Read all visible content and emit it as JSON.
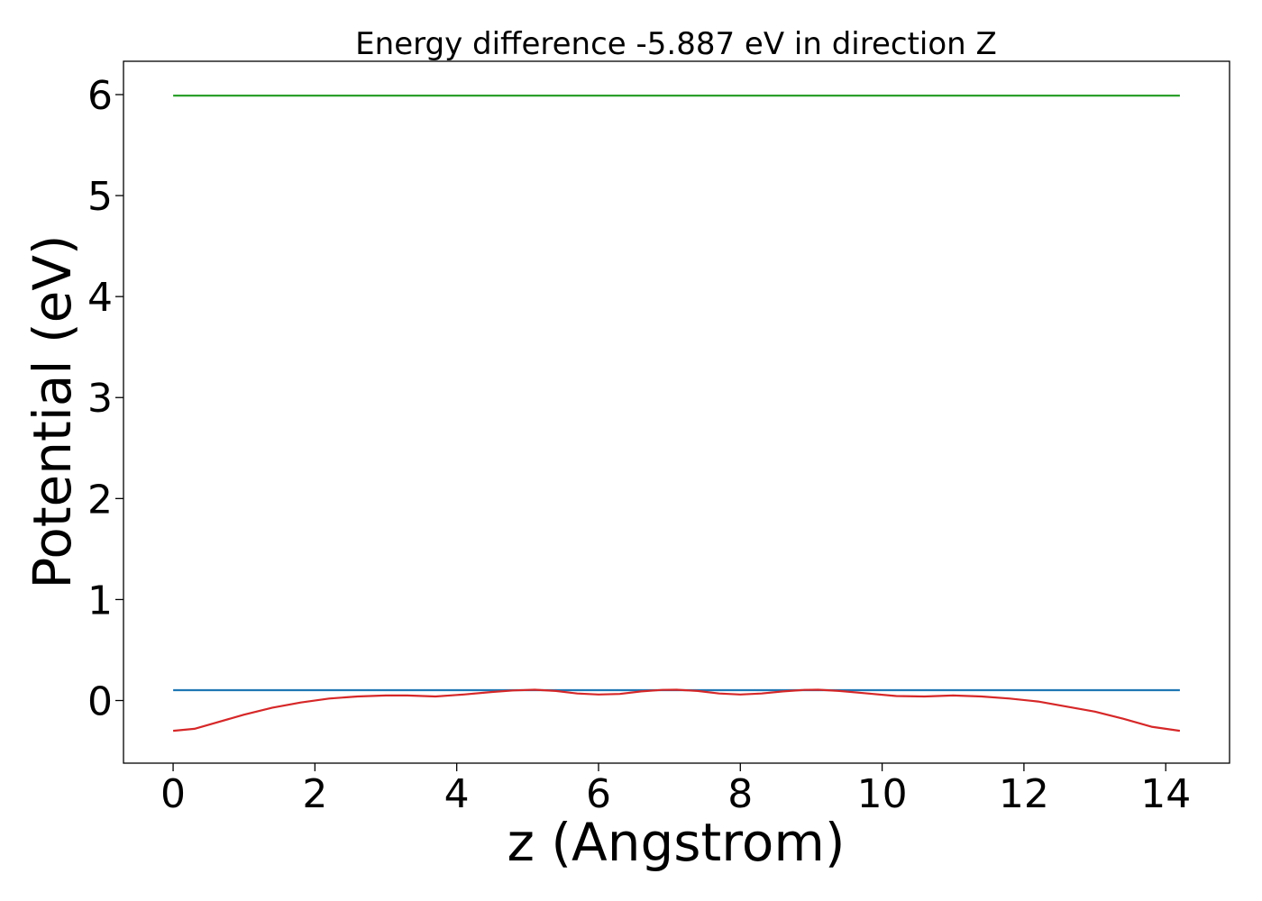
{
  "chart_data": {
    "type": "line",
    "title": "Energy difference -5.887 eV in direction Z",
    "xlabel": "z (Angstrom)",
    "ylabel": "Potential (eV)",
    "xlim": [
      -0.7,
      14.9
    ],
    "ylim": [
      -0.62,
      6.33
    ],
    "xticks": [
      0,
      2,
      4,
      6,
      8,
      10,
      12,
      14
    ],
    "yticks": [
      0,
      1,
      2,
      3,
      4,
      5,
      6
    ],
    "grid": false,
    "legend": "none",
    "series": [
      {
        "color": "#2ca02c",
        "x": [
          0,
          14.2
        ],
        "y": [
          5.99,
          5.99
        ]
      },
      {
        "color": "#1f77b4",
        "x": [
          0,
          14.2
        ],
        "y": [
          0.103,
          0.103
        ]
      },
      {
        "color": "#d62728",
        "x": [
          0,
          0.3,
          0.6,
          1.0,
          1.4,
          1.8,
          2.2,
          2.6,
          3.0,
          3.3,
          3.7,
          4.1,
          4.5,
          4.8,
          5.1,
          5.4,
          5.7,
          6.0,
          6.3,
          6.6,
          6.9,
          7.1,
          7.4,
          7.7,
          8.0,
          8.3,
          8.6,
          8.9,
          9.1,
          9.4,
          9.8,
          10.2,
          10.6,
          11.0,
          11.4,
          11.8,
          12.2,
          12.6,
          13.0,
          13.4,
          13.8,
          14.2
        ],
        "y": [
          -0.3,
          -0.28,
          -0.22,
          -0.14,
          -0.07,
          -0.02,
          0.02,
          0.04,
          0.05,
          0.05,
          0.04,
          0.06,
          0.085,
          0.1,
          0.107,
          0.095,
          0.07,
          0.06,
          0.065,
          0.09,
          0.105,
          0.107,
          0.095,
          0.07,
          0.06,
          0.07,
          0.09,
          0.105,
          0.107,
          0.095,
          0.07,
          0.045,
          0.04,
          0.05,
          0.04,
          0.02,
          -0.01,
          -0.06,
          -0.11,
          -0.18,
          -0.26,
          -0.3
        ]
      }
    ]
  }
}
